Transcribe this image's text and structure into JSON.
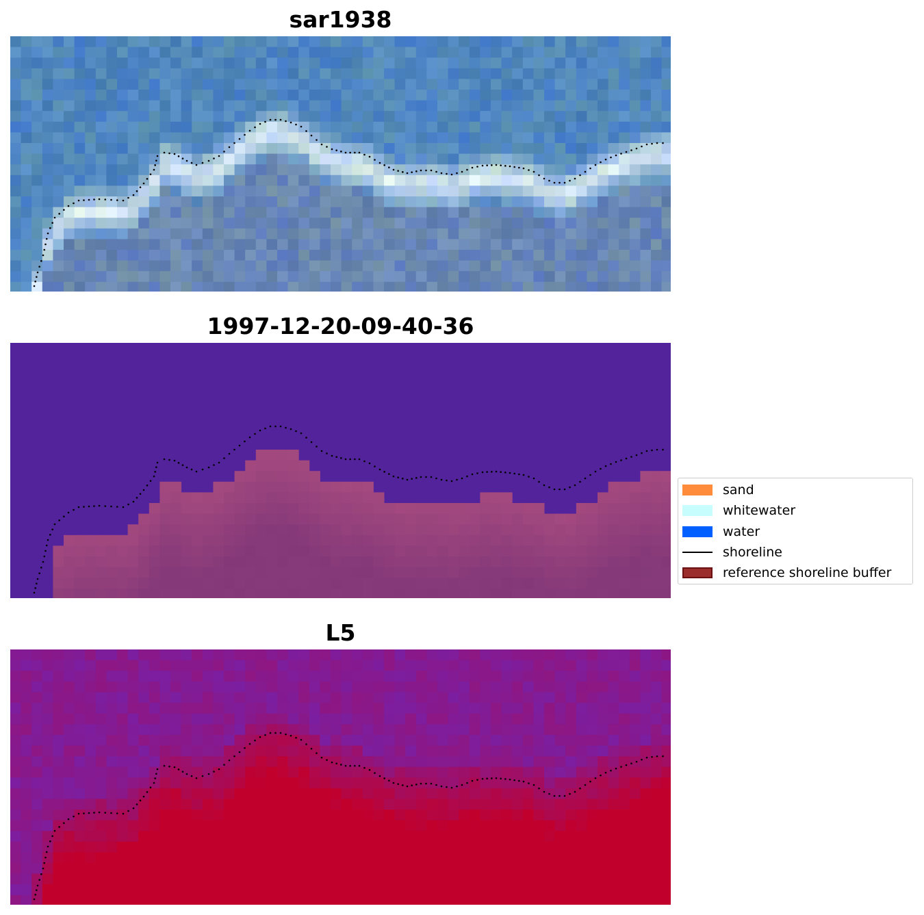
{
  "panels": [
    {
      "title": "sar1938",
      "style": "rgb"
    },
    {
      "title": "1997-12-20-09-40-36",
      "style": "class"
    },
    {
      "title": "L5",
      "style": "index"
    }
  ],
  "legend": {
    "items": [
      {
        "label": "sand",
        "type": "patch",
        "color": "#ff8c3a"
      },
      {
        "label": "whitewater",
        "type": "patch",
        "color": "#c8fdfd"
      },
      {
        "label": "water",
        "type": "patch",
        "color": "#0060ff"
      },
      {
        "label": "shoreline",
        "type": "line",
        "color": "#000000"
      },
      {
        "label": "reference shoreline buffer",
        "type": "patch",
        "color": "#9b2d2d",
        "edge": "#6b1010"
      }
    ]
  },
  "colors": {
    "water_class": "#52239a",
    "buffer": "#a3497f",
    "buffer_dark": "#7e3577",
    "index_low": "#7a1fa3",
    "index_high": "#c2002c"
  }
}
